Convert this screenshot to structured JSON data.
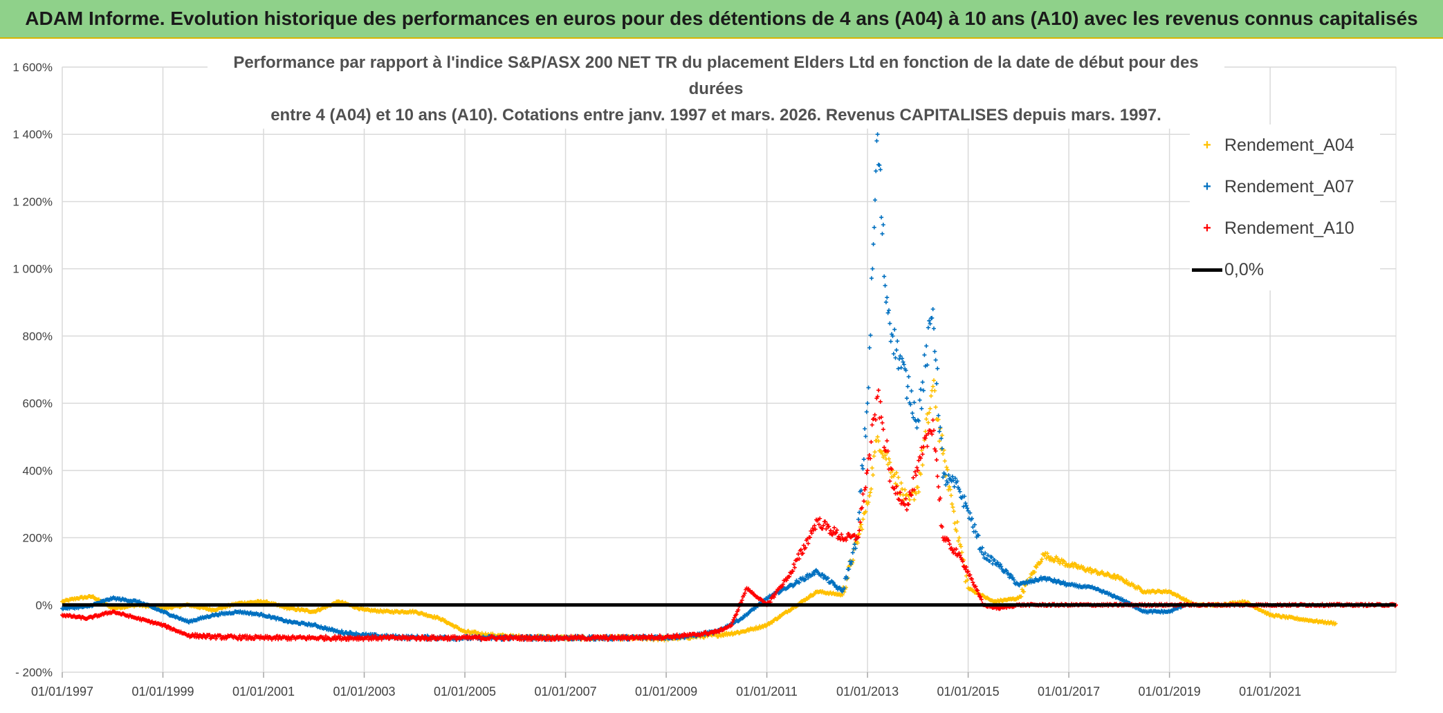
{
  "header": {
    "title": "ADAM Informe. Evolution historique des performances en euros pour des détentions de 4 ans (A04) à 10 ans (A10) avec les revenus connus capitalisés"
  },
  "colors": {
    "A04": "#ffc000",
    "A07": "#0070c0",
    "A10": "#ff0000",
    "zero": "#000000",
    "grid": "#d9d9d9",
    "banner": "#8fd18a"
  },
  "chart_data": {
    "type": "scatter",
    "title_line1": "Performance par rapport à l'indice S&P/ASX 200 NET TR  du placement Elders Ltd en fonction de la date de début pour des durées",
    "title_line2": "entre 4 (A04) et 10 ans (A10). Cotations entre janv. 1997 et mars. 2026. Revenus CAPITALISES depuis mars. 1997.",
    "xlabel": "",
    "ylabel": "",
    "xlim": [
      1997.0,
      2023.5
    ],
    "ylim": [
      -200,
      1600
    ],
    "y_ticks": [
      -200,
      0,
      200,
      400,
      600,
      800,
      1000,
      1200,
      1400,
      1600
    ],
    "y_tick_labels": [
      "- 200%",
      "0%",
      "200%",
      "400%",
      "600%",
      "800%",
      "1 000%",
      "1 200%",
      "1 400%",
      "1 600%"
    ],
    "x_ticks": [
      1997,
      1999,
      2001,
      2003,
      2005,
      2007,
      2009,
      2011,
      2013,
      2015,
      2017,
      2019,
      2021
    ],
    "x_tick_labels": [
      "01/01/1997",
      "01/01/1999",
      "01/01/2001",
      "01/01/2003",
      "01/01/2005",
      "01/01/2007",
      "01/01/2009",
      "01/01/2011",
      "01/01/2013",
      "01/01/2015",
      "01/01/2017",
      "01/01/2019",
      "01/01/2021"
    ],
    "legend": {
      "A04": "Rendement_A04",
      "A07": "Rendement_A07",
      "A10": "Rendement_A10",
      "zero": "0,0%"
    },
    "series": [
      {
        "name": "Rendement_A04",
        "key": "A04",
        "x": [
          1997.0,
          1997.3,
          1997.6,
          1998.0,
          1998.5,
          1999.0,
          1999.5,
          2000.0,
          2000.5,
          2001.0,
          2001.5,
          2002.0,
          2002.5,
          2003.0,
          2003.5,
          2004.0,
          2004.5,
          2005.0,
          2005.5,
          2006.0,
          2007.0,
          2008.0,
          2009.0,
          2009.5,
          2010.0,
          2010.5,
          2011.0,
          2011.5,
          2012.0,
          2012.5,
          2013.0,
          2013.2,
          2013.5,
          2013.8,
          2014.0,
          2014.3,
          2014.5,
          2015.0,
          2015.5,
          2016.0,
          2016.5,
          2017.0,
          2017.5,
          2018.0,
          2018.5,
          2019.0,
          2019.5,
          2020.0,
          2020.5,
          2021.0,
          2021.5,
          2022.0,
          2022.3
        ],
        "y": [
          10,
          20,
          25,
          -10,
          0,
          -10,
          0,
          -15,
          5,
          10,
          -10,
          -20,
          10,
          -15,
          -20,
          -20,
          -40,
          -80,
          -90,
          -95,
          -98,
          -98,
          -100,
          -95,
          -90,
          -80,
          -60,
          -10,
          40,
          30,
          300,
          500,
          400,
          300,
          350,
          650,
          450,
          50,
          10,
          20,
          150,
          120,
          100,
          80,
          40,
          40,
          0,
          0,
          10,
          -30,
          -40,
          -50,
          -55
        ]
      },
      {
        "name": "Rendement_A07",
        "key": "A07",
        "x": [
          1997.0,
          1997.5,
          1998.0,
          1998.5,
          1999.0,
          1999.5,
          2000.0,
          2000.5,
          2001.0,
          2001.5,
          2002.0,
          2002.5,
          2003.0,
          2003.5,
          2004.0,
          2005.0,
          2006.0,
          2007.0,
          2008.0,
          2009.0,
          2009.5,
          2010.0,
          2010.5,
          2011.0,
          2011.5,
          2012.0,
          2012.5,
          2012.8,
          2013.0,
          2013.1,
          2013.2,
          2013.35,
          2013.5,
          2013.8,
          2014.0,
          2014.3,
          2014.5,
          2014.8,
          2015.0,
          2015.3,
          2015.6,
          2016.0,
          2016.5,
          2017.0,
          2017.5,
          2018.0,
          2018.5,
          2019.0,
          2019.3
        ],
        "y": [
          -10,
          -5,
          20,
          10,
          -20,
          -50,
          -30,
          -20,
          -30,
          -50,
          -60,
          -80,
          -90,
          -95,
          -97,
          -98,
          -98,
          -98,
          -98,
          -96,
          -92,
          -80,
          -40,
          20,
          60,
          100,
          40,
          200,
          600,
          1000,
          1400,
          950,
          800,
          650,
          550,
          880,
          380,
          350,
          280,
          150,
          120,
          60,
          80,
          60,
          50,
          20,
          -20,
          -20,
          0
        ]
      },
      {
        "name": "Rendement_A10",
        "key": "A10",
        "x": [
          1997.0,
          1997.5,
          1998.0,
          1998.5,
          1999.0,
          1999.5,
          2000.0,
          2001.0,
          2002.0,
          2003.0,
          2004.0,
          2005.0,
          2006.0,
          2007.0,
          2008.0,
          2009.0,
          2009.5,
          2010.0,
          2010.3,
          2010.6,
          2011.0,
          2011.5,
          2012.0,
          2012.5,
          2012.8,
          2013.0,
          2013.2,
          2013.5,
          2013.8,
          2014.0,
          2014.3,
          2014.5,
          2014.8,
          2015.0,
          2015.3,
          2015.6,
          2016.0,
          2017.0,
          2018.0,
          2019.0,
          2020.0,
          2021.0,
          2022.0,
          2023.0,
          2023.5
        ],
        "y": [
          -30,
          -40,
          -20,
          -40,
          -60,
          -90,
          -95,
          -98,
          -98,
          -98,
          -98,
          -98,
          -98,
          -98,
          -98,
          -95,
          -90,
          -80,
          -60,
          50,
          0,
          100,
          250,
          200,
          200,
          400,
          620,
          350,
          300,
          400,
          550,
          200,
          150,
          100,
          0,
          -10,
          0,
          0,
          0,
          0,
          0,
          0,
          0,
          0,
          0
        ]
      }
    ]
  }
}
